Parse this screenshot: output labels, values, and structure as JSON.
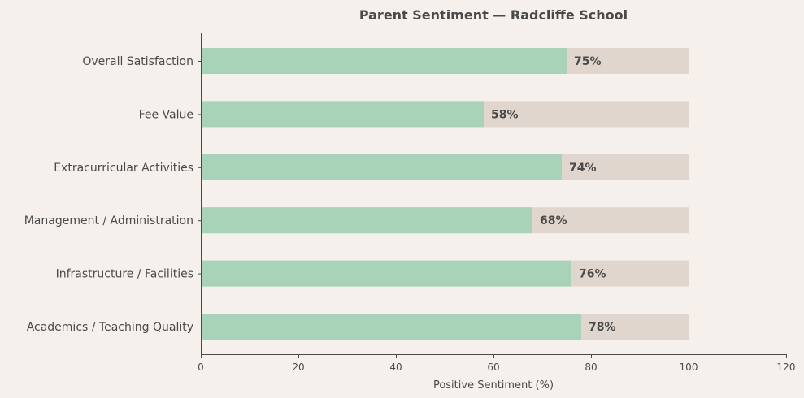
{
  "chart_data": {
    "type": "bar",
    "orientation": "horizontal",
    "title": "Parent Sentiment — Radcliffe School",
    "xlabel": "Positive Sentiment (%)",
    "ylabel": "",
    "xlim": [
      0,
      120
    ],
    "x_ticks": [
      "0",
      "20",
      "40",
      "60",
      "80",
      "100",
      "120"
    ],
    "grid": false,
    "categories": [
      "Overall Satisfaction",
      "Fee Value",
      "Extracurricular Activities",
      "Management / Administration",
      "Infrastructure / Facilities",
      "Academics / Teaching Quality"
    ],
    "values": [
      75,
      58,
      74,
      68,
      76,
      78
    ],
    "data_labels": [
      "75%",
      "58%",
      "74%",
      "68%",
      "76%",
      "78%"
    ],
    "background_total": 100,
    "colors": {
      "bar": "#a8d3b8",
      "background_bar": "#e0d6cd",
      "page": "#f5f0ec",
      "text": "#4a4a4a"
    }
  }
}
